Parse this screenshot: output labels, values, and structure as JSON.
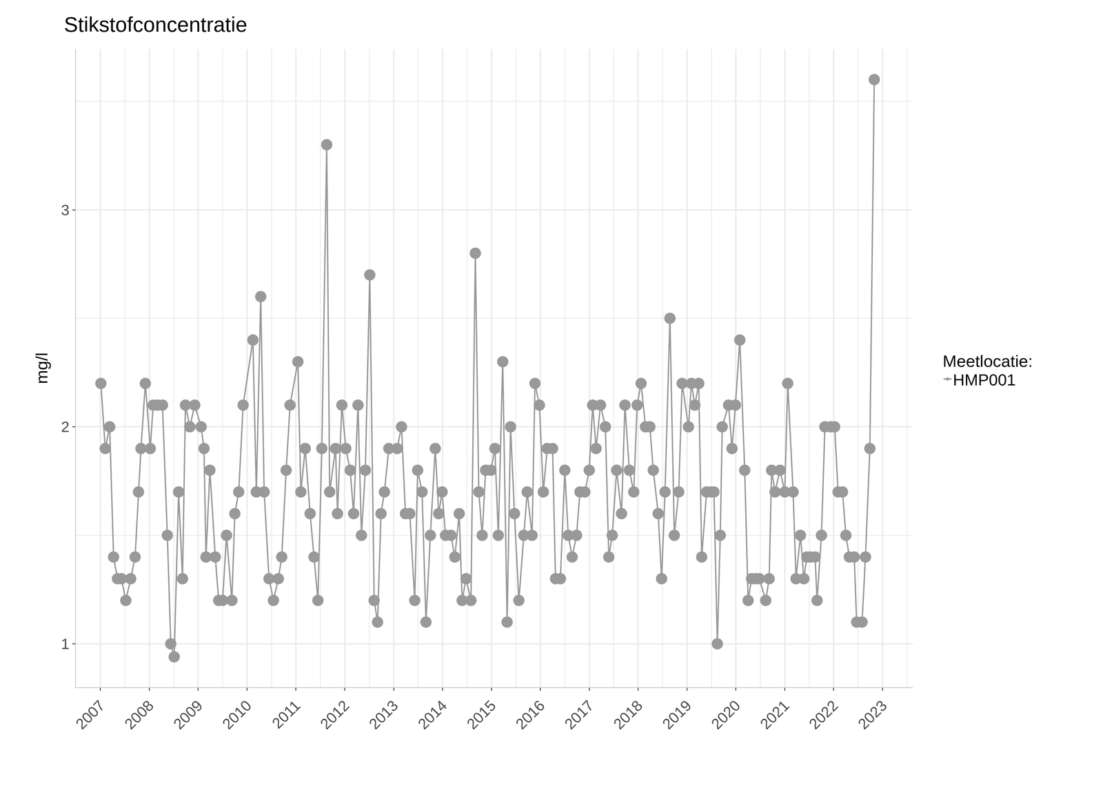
{
  "chart_data": {
    "type": "line",
    "title": "Stikstofconcentratie",
    "y_label": "mg/l",
    "legend_title": "Meetlocatie:",
    "x": [
      2007.01,
      2007.1,
      2007.19,
      2007.27,
      2007.35,
      2007.43,
      2007.52,
      2007.62,
      2007.71,
      2007.78,
      2007.83,
      2007.92,
      2008.02,
      2008.08,
      2008.17,
      2008.27,
      2008.37,
      2008.44,
      2008.51,
      2008.6,
      2008.68,
      2008.74,
      2008.83,
      2008.93,
      2009.06,
      2009.12,
      2009.16,
      2009.24,
      2009.35,
      2009.42,
      2009.5,
      2009.58,
      2009.69,
      2009.75,
      2009.83,
      2009.92,
      2010.12,
      2010.19,
      2010.28,
      2010.35,
      2010.45,
      2010.54,
      2010.64,
      2010.71,
      2010.8,
      2010.88,
      2011.04,
      2011.1,
      2011.19,
      2011.29,
      2011.37,
      2011.45,
      2011.53,
      2011.63,
      2011.69,
      2011.81,
      2011.85,
      2011.94,
      2012.02,
      2012.11,
      2012.18,
      2012.27,
      2012.34,
      2012.42,
      2012.51,
      2012.6,
      2012.67,
      2012.74,
      2012.81,
      2012.9,
      2013.07,
      2013.16,
      2013.24,
      2013.33,
      2013.43,
      2013.49,
      2013.58,
      2013.66,
      2013.75,
      2013.85,
      2013.92,
      2013.99,
      2014.06,
      2014.17,
      2014.25,
      2014.34,
      2014.4,
      2014.48,
      2014.58,
      2014.67,
      2014.74,
      2014.81,
      2014.88,
      2014.99,
      2015.07,
      2015.14,
      2015.23,
      2015.32,
      2015.39,
      2015.47,
      2015.56,
      2015.66,
      2015.73,
      2015.83,
      2015.89,
      2015.98,
      2016.06,
      2016.14,
      2016.25,
      2016.31,
      2016.41,
      2016.5,
      2016.57,
      2016.65,
      2016.74,
      2016.81,
      2016.91,
      2017.0,
      2017.07,
      2017.14,
      2017.23,
      2017.33,
      2017.4,
      2017.47,
      2017.56,
      2017.66,
      2017.73,
      2017.82,
      2017.91,
      2017.98,
      2018.06,
      2018.15,
      2018.24,
      2018.31,
      2018.41,
      2018.48,
      2018.55,
      2018.65,
      2018.74,
      2018.83,
      2018.9,
      2019.03,
      2019.09,
      2019.16,
      2019.24,
      2019.3,
      2019.4,
      2019.49,
      2019.55,
      2019.62,
      2019.68,
      2019.72,
      2019.85,
      2019.92,
      2019.99,
      2020.08,
      2020.18,
      2020.25,
      2020.32,
      2020.41,
      2020.48,
      2020.61,
      2020.68,
      2020.73,
      2020.8,
      2020.9,
      2021.0,
      2021.06,
      2021.17,
      2021.23,
      2021.32,
      2021.39,
      2021.45,
      2021.52,
      2021.62,
      2021.66,
      2021.75,
      2021.82,
      2021.94,
      2022.02,
      2022.09,
      2022.18,
      2022.25,
      2022.32,
      2022.42,
      2022.47,
      2022.58,
      2022.65,
      2022.74,
      2022.83
    ],
    "series": [
      {
        "name": "HMP001",
        "color": "#999999",
        "marker": "circle",
        "line_style": "solid",
        "values": [
          2.2,
          1.9,
          2.0,
          1.4,
          1.3,
          1.3,
          1.2,
          1.3,
          1.4,
          1.7,
          1.9,
          2.2,
          1.9,
          2.1,
          2.1,
          2.1,
          1.5,
          1.0,
          0.94,
          1.7,
          1.3,
          2.1,
          2.0,
          2.1,
          2.0,
          1.9,
          1.4,
          1.8,
          1.4,
          1.2,
          1.2,
          1.5,
          1.2,
          1.6,
          1.7,
          2.1,
          2.4,
          1.7,
          2.6,
          1.7,
          1.3,
          1.2,
          1.3,
          1.4,
          1.8,
          2.1,
          2.3,
          1.7,
          1.9,
          1.6,
          1.4,
          1.2,
          1.9,
          3.3,
          1.7,
          1.9,
          1.6,
          2.1,
          1.9,
          1.8,
          1.6,
          2.1,
          1.5,
          1.8,
          2.7,
          1.2,
          1.1,
          1.6,
          1.7,
          1.9,
          1.9,
          2.0,
          1.6,
          1.6,
          1.2,
          1.8,
          1.7,
          1.1,
          1.5,
          1.9,
          1.6,
          1.7,
          1.5,
          1.5,
          1.4,
          1.6,
          1.2,
          1.3,
          1.2,
          2.8,
          1.7,
          1.5,
          1.8,
          1.8,
          1.9,
          1.5,
          2.3,
          1.1,
          2.0,
          1.6,
          1.2,
          1.5,
          1.7,
          1.5,
          2.2,
          2.1,
          1.7,
          1.9,
          1.9,
          1.3,
          1.3,
          1.8,
          1.5,
          1.4,
          1.5,
          1.7,
          1.7,
          1.8,
          2.1,
          1.9,
          2.1,
          2.0,
          1.4,
          1.5,
          1.8,
          1.6,
          2.1,
          1.8,
          1.7,
          2.1,
          2.2,
          2.0,
          2.0,
          1.8,
          1.6,
          1.3,
          1.7,
          2.5,
          1.5,
          1.7,
          2.2,
          2.0,
          2.2,
          2.1,
          2.2,
          1.4,
          1.7,
          1.7,
          1.7,
          1.0,
          1.5,
          2.0,
          2.1,
          1.9,
          2.1,
          2.4,
          1.8,
          1.2,
          1.3,
          1.3,
          1.3,
          1.2,
          1.3,
          1.8,
          1.7,
          1.8,
          1.7,
          2.2,
          1.7,
          1.3,
          1.5,
          1.3,
          1.4,
          1.4,
          1.4,
          1.2,
          1.5,
          2.0,
          2.0,
          2.0,
          1.7,
          1.7,
          1.5,
          1.4,
          1.4,
          1.1,
          1.1,
          1.4,
          1.9,
          3.6
        ]
      }
    ],
    "xlim": [
      2006.5,
      2023.62
    ],
    "xticks": [
      2007,
      2008,
      2009,
      2010,
      2011,
      2012,
      2013,
      2014,
      2015,
      2016,
      2017,
      2018,
      2019,
      2020,
      2021,
      2022,
      2023
    ],
    "ylim": [
      0.8,
      3.74
    ],
    "yticks": [
      1,
      2,
      3
    ],
    "grid": true,
    "legend": "right"
  }
}
